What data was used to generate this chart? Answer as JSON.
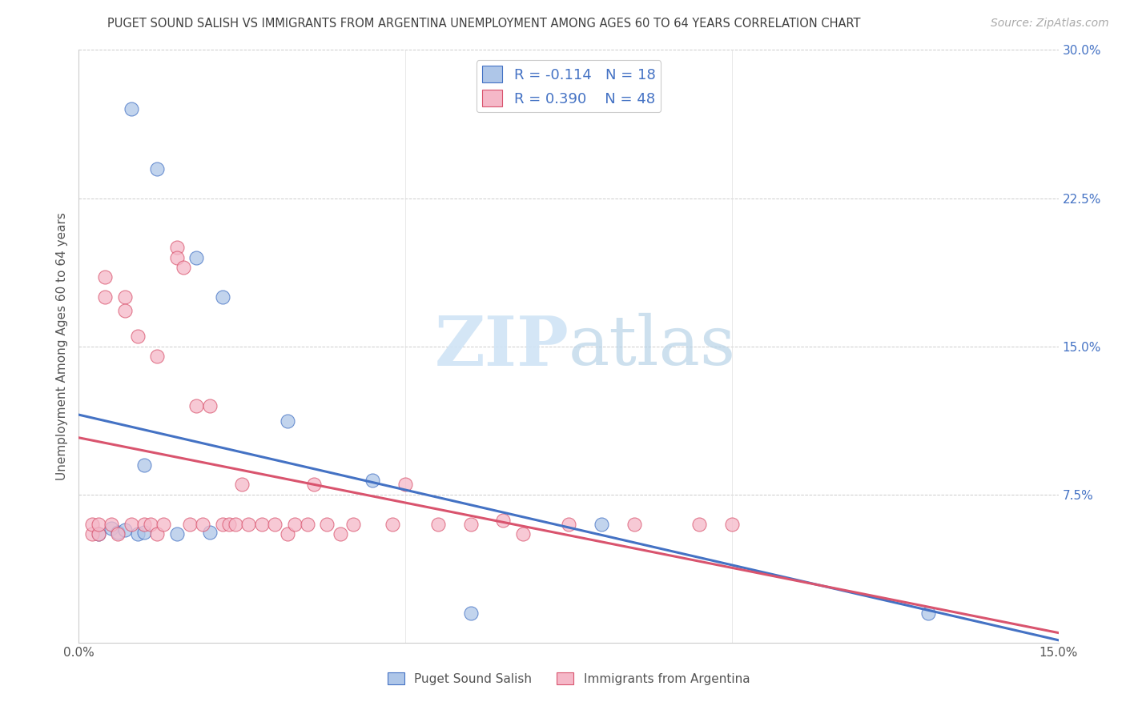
{
  "title": "PUGET SOUND SALISH VS IMMIGRANTS FROM ARGENTINA UNEMPLOYMENT AMONG AGES 60 TO 64 YEARS CORRELATION CHART",
  "source": "Source: ZipAtlas.com",
  "ylabel": "Unemployment Among Ages 60 to 64 years",
  "xlabel_blue": "Puget Sound Salish",
  "xlabel_pink": "Immigrants from Argentina",
  "xlim": [
    0.0,
    0.15
  ],
  "ylim": [
    0.0,
    0.3
  ],
  "xticks": [
    0.0,
    0.05,
    0.1,
    0.15
  ],
  "xtick_labels": [
    "0.0%",
    "",
    "",
    "15.0%"
  ],
  "ytick_labels_right": [
    "",
    "7.5%",
    "15.0%",
    "22.5%",
    "30.0%"
  ],
  "yticks": [
    0.0,
    0.075,
    0.15,
    0.225,
    0.3
  ],
  "blue_R": "-0.114",
  "blue_N": "18",
  "pink_R": "0.390",
  "pink_N": "48",
  "blue_color": "#aec6e8",
  "pink_color": "#f5b8c8",
  "blue_line_color": "#4472c4",
  "pink_line_color": "#d9546e",
  "watermark_color": "#d0e4f5",
  "bg_color": "#ffffff",
  "title_color": "#404040",
  "tick_color": "#4472c4",
  "grid_color": "#cccccc",
  "blue_scatter_x": [
    0.008,
    0.012,
    0.018,
    0.022,
    0.003,
    0.005,
    0.006,
    0.007,
    0.009,
    0.01,
    0.01,
    0.015,
    0.02,
    0.032,
    0.045,
    0.06,
    0.08,
    0.13
  ],
  "blue_scatter_y": [
    0.27,
    0.24,
    0.195,
    0.175,
    0.055,
    0.058,
    0.056,
    0.057,
    0.055,
    0.056,
    0.09,
    0.055,
    0.056,
    0.112,
    0.082,
    0.015,
    0.06,
    0.015
  ],
  "pink_scatter_x": [
    0.002,
    0.002,
    0.003,
    0.003,
    0.004,
    0.004,
    0.005,
    0.006,
    0.007,
    0.007,
    0.008,
    0.009,
    0.01,
    0.011,
    0.012,
    0.012,
    0.013,
    0.015,
    0.015,
    0.016,
    0.017,
    0.018,
    0.019,
    0.02,
    0.022,
    0.023,
    0.024,
    0.025,
    0.026,
    0.028,
    0.03,
    0.032,
    0.033,
    0.035,
    0.036,
    0.038,
    0.04,
    0.042,
    0.048,
    0.05,
    0.055,
    0.06,
    0.065,
    0.068,
    0.075,
    0.085,
    0.095,
    0.1
  ],
  "pink_scatter_y": [
    0.055,
    0.06,
    0.055,
    0.06,
    0.185,
    0.175,
    0.06,
    0.055,
    0.175,
    0.168,
    0.06,
    0.155,
    0.06,
    0.06,
    0.145,
    0.055,
    0.06,
    0.2,
    0.195,
    0.19,
    0.06,
    0.12,
    0.06,
    0.12,
    0.06,
    0.06,
    0.06,
    0.08,
    0.06,
    0.06,
    0.06,
    0.055,
    0.06,
    0.06,
    0.08,
    0.06,
    0.055,
    0.06,
    0.06,
    0.08,
    0.06,
    0.06,
    0.062,
    0.055,
    0.06,
    0.06,
    0.06,
    0.06
  ],
  "title_fontsize": 10.5,
  "axis_fontsize": 11,
  "tick_fontsize": 11,
  "source_fontsize": 10,
  "legend_fontsize": 13
}
